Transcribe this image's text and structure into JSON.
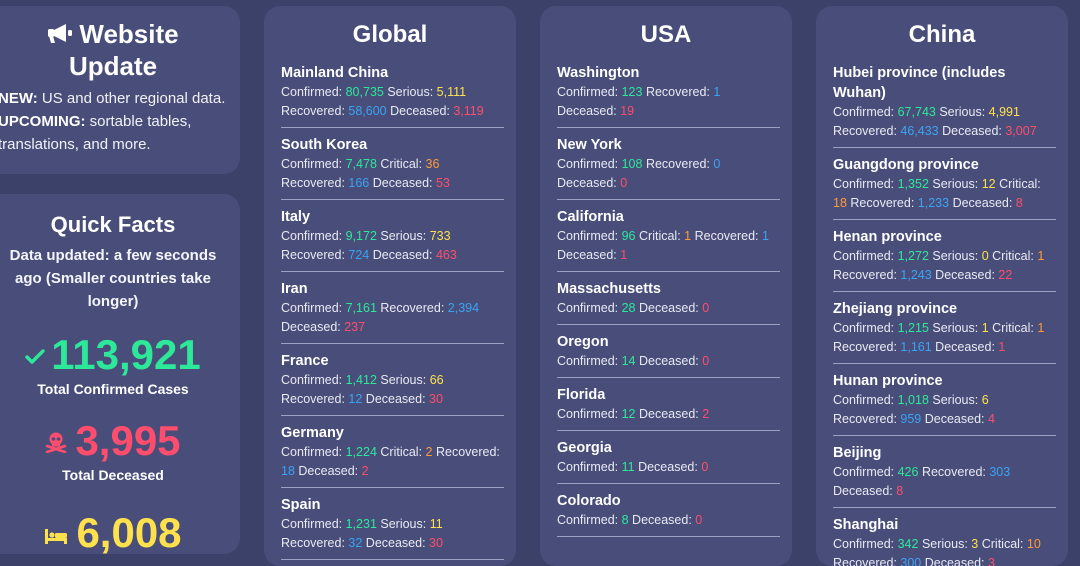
{
  "update": {
    "title_line1": "Website",
    "title_line2": "Update",
    "new_label": "NEW:",
    "new_text": " US and other regional data.",
    "upcoming_label": "UPCOMING:",
    "upcoming_text": " sortable tables, translations, and more."
  },
  "facts": {
    "title": "Quick Facts",
    "subtitle": "Data updated: a few seconds ago (Smaller countries take longer)",
    "confirmed_value": "113,921",
    "confirmed_label": "Total Confirmed Cases",
    "deceased_value": "3,995",
    "deceased_label": "Total Deceased",
    "recovered_value": "6,008",
    "icons": [
      "check-icon",
      "skull-crossbones-icon",
      "bed-icon",
      "megaphone-icon"
    ],
    "colors": {
      "confirmed": "#2ee89a",
      "deceased": "#ff4d6d",
      "recovered": "#ffe14d"
    }
  },
  "labels": {
    "confirmed": "Confirmed: ",
    "serious": "Serious: ",
    "critical": "Critical: ",
    "recovered": "Recovered: ",
    "deceased": "Deceased: "
  },
  "global": {
    "title": "Global",
    "items": [
      {
        "name": "Mainland China",
        "confirmed": "80,735",
        "serious": "5,111",
        "recovered": "58,600",
        "deceased": "3,119"
      },
      {
        "name": "South Korea",
        "confirmed": "7,478",
        "critical": "36",
        "recovered": "166",
        "deceased": "53"
      },
      {
        "name": "Italy",
        "confirmed": "9,172",
        "serious": "733",
        "recovered": "724",
        "deceased": "463"
      },
      {
        "name": "Iran",
        "confirmed": "7,161",
        "recovered": "2,394",
        "deceased": "237"
      },
      {
        "name": "France",
        "confirmed": "1,412",
        "serious": "66",
        "recovered": "12",
        "deceased": "30"
      },
      {
        "name": "Germany",
        "confirmed": "1,224",
        "critical": "2",
        "recovered": "18",
        "deceased": "2"
      },
      {
        "name": "Spain",
        "confirmed": "1,231",
        "serious": "11",
        "recovered": "32",
        "deceased": "30"
      }
    ]
  },
  "usa": {
    "title": "USA",
    "items": [
      {
        "name": "Washington",
        "confirmed": "123",
        "recovered": "1",
        "deceased": "19"
      },
      {
        "name": "New York",
        "confirmed": "108",
        "recovered": "0",
        "deceased": "0"
      },
      {
        "name": "California",
        "confirmed": "96",
        "critical": "1",
        "recovered": "1",
        "deceased": "1"
      },
      {
        "name": "Massachusetts",
        "confirmed": "28",
        "deceased": "0"
      },
      {
        "name": "Oregon",
        "confirmed": "14",
        "deceased": "0"
      },
      {
        "name": "Florida",
        "confirmed": "12",
        "deceased": "2"
      },
      {
        "name": "Georgia",
        "confirmed": "11",
        "deceased": "0"
      },
      {
        "name": "Colorado",
        "confirmed": "8",
        "deceased": "0"
      }
    ]
  },
  "china": {
    "title": "China",
    "items": [
      {
        "name": "Hubei province (includes Wuhan)",
        "confirmed": "67,743",
        "serious": "4,991",
        "recovered": "46,433",
        "deceased": "3,007"
      },
      {
        "name": "Guangdong province",
        "confirmed": "1,352",
        "serious": "12",
        "critical": "18",
        "recovered": "1,233",
        "deceased": "8"
      },
      {
        "name": "Henan province",
        "confirmed": "1,272",
        "serious": "0",
        "critical": "1",
        "recovered": "1,243",
        "deceased": "22"
      },
      {
        "name": "Zhejiang province",
        "confirmed": "1,215",
        "serious": "1",
        "critical": "1",
        "recovered": "1,161",
        "deceased": "1"
      },
      {
        "name": "Hunan province",
        "confirmed": "1,018",
        "serious": "6",
        "recovered": "959",
        "deceased": "4"
      },
      {
        "name": "Beijing",
        "confirmed": "426",
        "recovered": "303",
        "deceased": "8"
      },
      {
        "name": "Shanghai",
        "confirmed": "342",
        "serious": "3",
        "critical": "10",
        "recovered": "300",
        "deceased": "3"
      }
    ]
  }
}
